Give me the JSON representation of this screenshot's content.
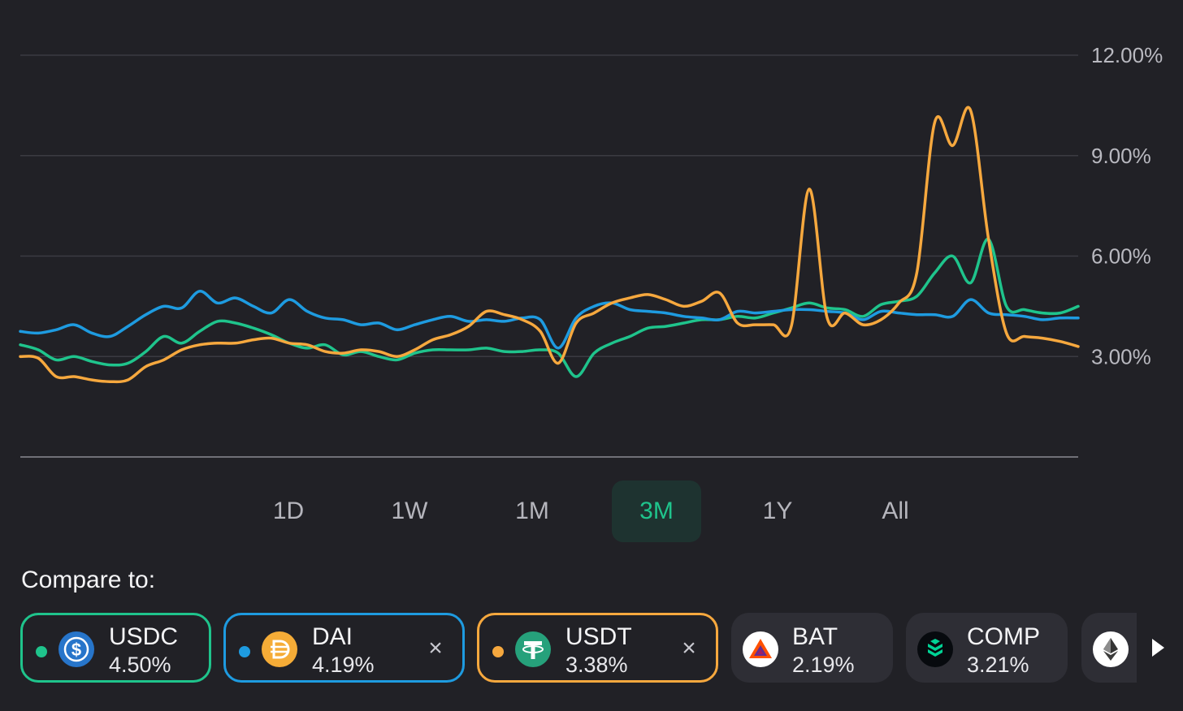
{
  "chart_data": {
    "type": "line",
    "y_tick_labels": [
      "12.00%",
      "9.00%",
      "6.00%",
      "3.00%"
    ],
    "y_ticks": [
      12,
      9,
      6,
      3
    ],
    "ylim": [
      0,
      12
    ],
    "grid": true,
    "y_axis_side": "right",
    "series": [
      {
        "name": "USDC",
        "color": "#1fc48c",
        "values": [
          3.35,
          3.2,
          2.9,
          3.0,
          2.85,
          2.75,
          2.8,
          3.15,
          3.6,
          3.4,
          3.75,
          4.05,
          4.0,
          3.85,
          3.65,
          3.4,
          3.25,
          3.35,
          3.05,
          3.15,
          3.0,
          2.9,
          3.1,
          3.2,
          3.2,
          3.2,
          3.25,
          3.15,
          3.15,
          3.2,
          3.1,
          2.4,
          3.1,
          3.4,
          3.6,
          3.85,
          3.9,
          4.0,
          4.1,
          4.1,
          4.2,
          4.15,
          4.3,
          4.45,
          4.6,
          4.45,
          4.4,
          4.2,
          4.55,
          4.65,
          4.8,
          5.5,
          6.0,
          5.2,
          6.5,
          4.5,
          4.4,
          4.3,
          4.3,
          4.5
        ]
      },
      {
        "name": "DAI",
        "color": "#1e9be0",
        "values": [
          3.75,
          3.7,
          3.8,
          3.95,
          3.7,
          3.6,
          3.9,
          4.25,
          4.5,
          4.45,
          4.95,
          4.6,
          4.75,
          4.5,
          4.3,
          4.7,
          4.35,
          4.15,
          4.1,
          3.95,
          4.0,
          3.8,
          3.95,
          4.1,
          4.2,
          4.05,
          4.1,
          4.05,
          4.15,
          4.1,
          3.25,
          4.15,
          4.5,
          4.6,
          4.4,
          4.35,
          4.3,
          4.2,
          4.15,
          4.1,
          4.35,
          4.3,
          4.35,
          4.4,
          4.4,
          4.35,
          4.3,
          4.1,
          4.35,
          4.3,
          4.25,
          4.25,
          4.2,
          4.7,
          4.3,
          4.25,
          4.2,
          4.1,
          4.15,
          4.15
        ]
      },
      {
        "name": "USDT",
        "color": "#f6a83e",
        "values": [
          3.0,
          2.95,
          2.4,
          2.4,
          2.3,
          2.25,
          2.3,
          2.7,
          2.9,
          3.2,
          3.35,
          3.4,
          3.4,
          3.5,
          3.55,
          3.4,
          3.35,
          3.15,
          3.1,
          3.2,
          3.15,
          3.0,
          3.2,
          3.5,
          3.65,
          3.9,
          4.35,
          4.25,
          4.1,
          3.75,
          2.8,
          4.0,
          4.3,
          4.6,
          4.75,
          4.85,
          4.7,
          4.5,
          4.65,
          4.9,
          4.0,
          3.95,
          3.95,
          3.9,
          8.0,
          4.15,
          4.3,
          3.95,
          4.1,
          4.6,
          5.5,
          10.0,
          9.3,
          10.35,
          6.5,
          3.7,
          3.6,
          3.55,
          3.45,
          3.3
        ]
      }
    ]
  },
  "range_selector": {
    "options": [
      "1D",
      "1W",
      "1M",
      "3M",
      "1Y",
      "All"
    ],
    "selected": "3M"
  },
  "compare": {
    "title": "Compare to:",
    "chips": [
      {
        "symbol": "USDC",
        "rate": "4.50%",
        "color": "#1fc48c",
        "icon": "usdc-icon",
        "selected": true
      },
      {
        "symbol": "DAI",
        "rate": "4.19%",
        "color": "#1e9be0",
        "icon": "dai-icon",
        "selected": true
      },
      {
        "symbol": "USDT",
        "rate": "3.38%",
        "color": "#f6a83e",
        "icon": "usdt-icon",
        "selected": true
      },
      {
        "symbol": "BAT",
        "rate": "2.19%",
        "icon": "bat-icon",
        "selected": false
      },
      {
        "symbol": "COMP",
        "rate": "3.21%",
        "icon": "comp-icon",
        "selected": false
      },
      {
        "icon": "eth-icon",
        "selected": false
      }
    ],
    "remove_glyph": "×"
  }
}
